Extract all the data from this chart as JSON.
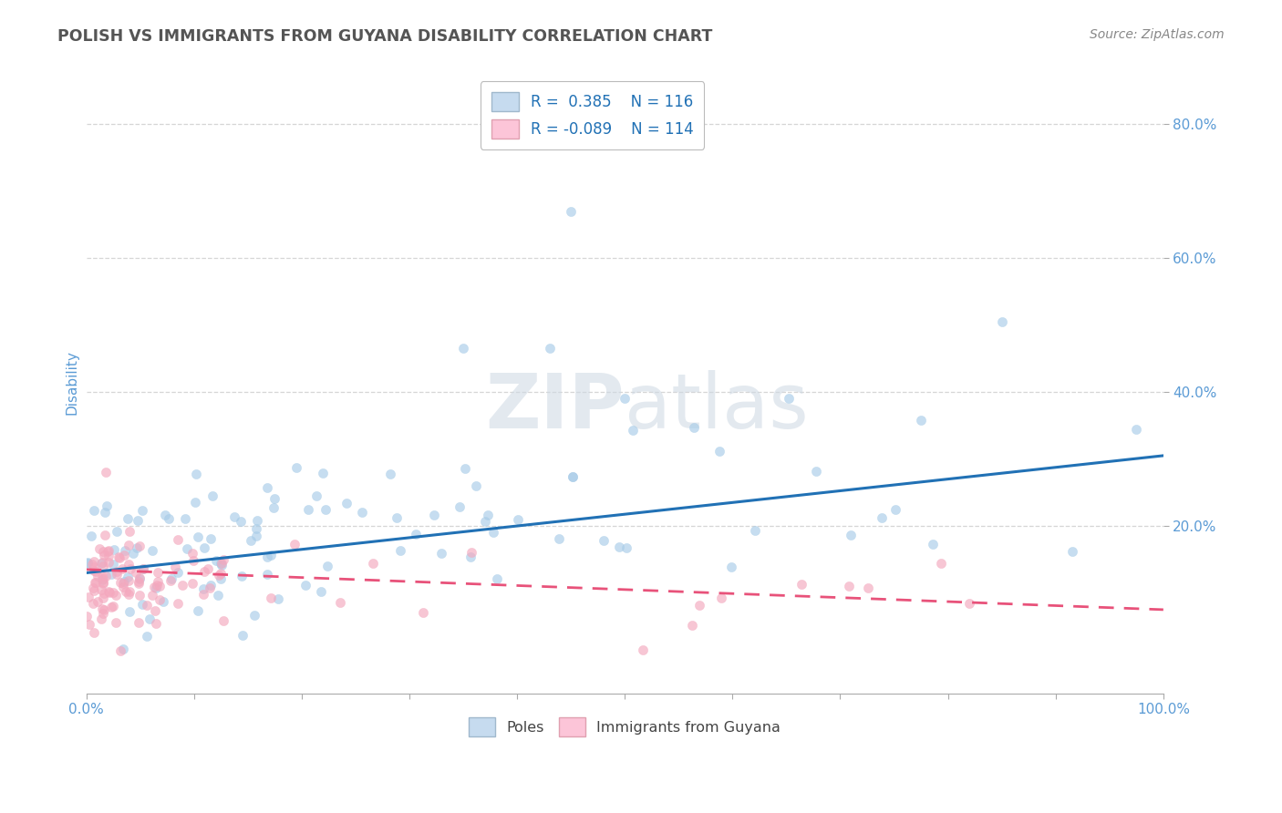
{
  "title": "POLISH VS IMMIGRANTS FROM GUYANA DISABILITY CORRELATION CHART",
  "source": "Source: ZipAtlas.com",
  "ylabel": "Disability",
  "xlim": [
    0,
    1.0
  ],
  "ylim": [
    -0.05,
    0.88
  ],
  "y_ticks_right": [
    0.2,
    0.4,
    0.6,
    0.8
  ],
  "blue_R": 0.385,
  "blue_N": 116,
  "pink_R": -0.089,
  "pink_N": 114,
  "blue_scatter_color": "#a8cce8",
  "pink_scatter_color": "#f4a8be",
  "blue_line_color": "#2171b5",
  "pink_line_color": "#e8527a",
  "blue_legend_fill": "#c6dbef",
  "pink_legend_fill": "#fcc5d8",
  "background_color": "#ffffff",
  "grid_color": "#cccccc",
  "title_color": "#555555",
  "source_color": "#888888",
  "axis_tick_color": "#5b9bd5",
  "watermark_color": "#cdd8e3",
  "seed": 77,
  "blue_line_start_y": 0.13,
  "blue_line_end_y": 0.305,
  "pink_line_start_y": 0.135,
  "pink_line_end_y": 0.075
}
